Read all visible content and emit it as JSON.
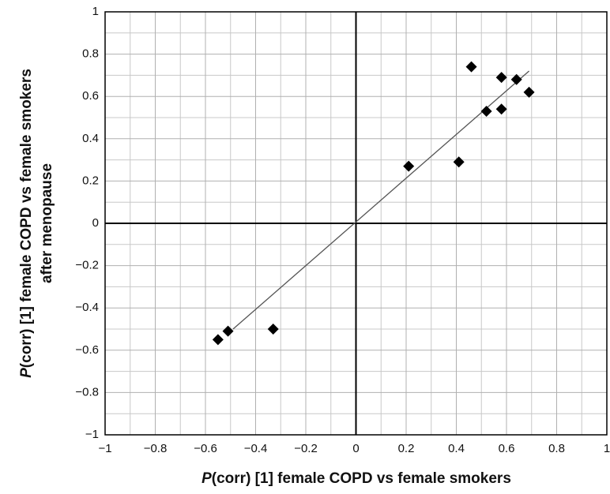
{
  "chart_data": {
    "type": "scatter",
    "xlabel": "P(corr) [1] female COPD vs female smokers",
    "ylabel": [
      "P(corr) [1] female COPD vs female smokers",
      "after menopause"
    ],
    "x": [
      0.46,
      0.58,
      0.64,
      0.69,
      0.52,
      0.58,
      0.21,
      0.41,
      -0.55,
      -0.51,
      -0.33
    ],
    "values": [
      0.74,
      0.69,
      0.68,
      0.62,
      0.53,
      0.54,
      0.27,
      0.29,
      -0.55,
      -0.51,
      -0.5
    ],
    "color": "#000000",
    "trendline": {
      "x": [
        -0.49,
        0.69
      ],
      "y": [
        -0.5,
        0.72
      ],
      "color": "#555555"
    },
    "xlim": [
      -1,
      1
    ],
    "ylim": [
      -1,
      1
    ],
    "xticks": [
      {
        "value": -1,
        "label": "−1"
      },
      {
        "value": -0.8,
        "label": "−0.8"
      },
      {
        "value": -0.6,
        "label": "−0.6"
      },
      {
        "value": -0.4,
        "label": "−0.4"
      },
      {
        "value": -0.2,
        "label": "−0.2"
      },
      0,
      0.2,
      0.4,
      0.6,
      0.8,
      1
    ],
    "yticks": [
      {
        "value": -1,
        "label": "−1"
      },
      {
        "value": -0.8,
        "label": "−0.8"
      },
      {
        "value": -0.6,
        "label": "−0.6"
      },
      {
        "value": -0.4,
        "label": "−0.4"
      },
      {
        "value": -0.2,
        "label": "−0.2"
      },
      0,
      0.2,
      0.4,
      0.6,
      0.8,
      1
    ],
    "grid": true
  }
}
